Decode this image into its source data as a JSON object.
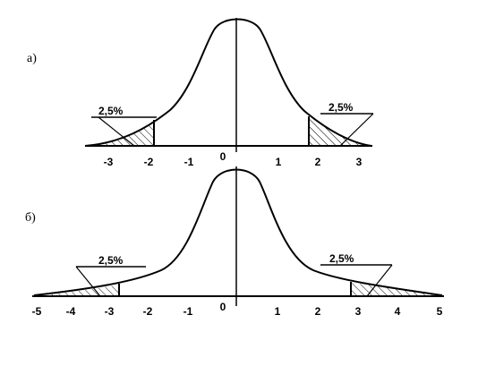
{
  "panels": [
    {
      "label": "а)",
      "ticks": [
        "-3",
        "-2",
        "-1",
        "0",
        "1",
        "2",
        "3"
      ],
      "left_tail": "2,5%",
      "right_tail": "2,5%"
    },
    {
      "label": "б)",
      "ticks": [
        "-5",
        "-4",
        "-3",
        "-2",
        "-1",
        "0",
        "1",
        "2",
        "3",
        "4",
        "5"
      ],
      "left_tail": "2,5%",
      "right_tail": "2,5%"
    }
  ]
}
